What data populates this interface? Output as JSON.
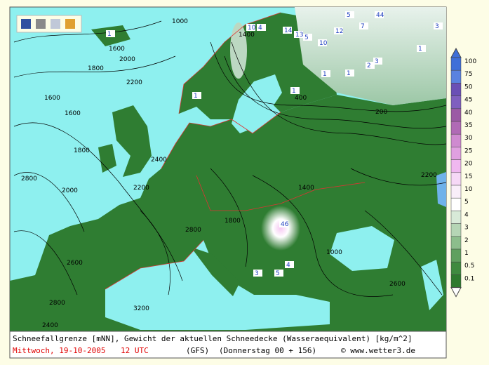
{
  "caption": {
    "line1": "Schneefallgrenze [mNN], Gewicht der aktuellen Schneedecke (Wasseraequivalent) [kg/m^2]",
    "date": "Mittwoch, 19-10-2005",
    "time": "12 UTC",
    "model": "(GFS)",
    "run": "(Donnerstag 00 + 156)",
    "copyright": "© www.wetter3.de"
  },
  "colorbar": {
    "labels": [
      "100",
      "75",
      "50",
      "45",
      "40",
      "35",
      "30",
      "25",
      "20",
      "15",
      "10",
      "5",
      "4",
      "3",
      "2",
      "1",
      "0.5",
      "0.1"
    ]
  },
  "map": {
    "contour_labels": [
      "1000",
      "1600",
      "2000",
      "1800",
      "2200",
      "1600",
      "1600",
      "1800",
      "2000",
      "2800",
      "2400",
      "2200",
      "2800",
      "2600",
      "3200",
      "2800",
      "2400",
      "1800",
      "1400",
      "1000",
      "2200",
      "2600",
      "1400",
      "400",
      "200"
    ],
    "snow_labels": [
      "44",
      "5",
      "12",
      "7",
      "3",
      "10",
      "1",
      "1",
      "1",
      "2",
      "3",
      "1",
      "1",
      "46",
      "3",
      "5",
      "4",
      "1",
      "10",
      "4",
      "14",
      "13",
      "5"
    ]
  }
}
